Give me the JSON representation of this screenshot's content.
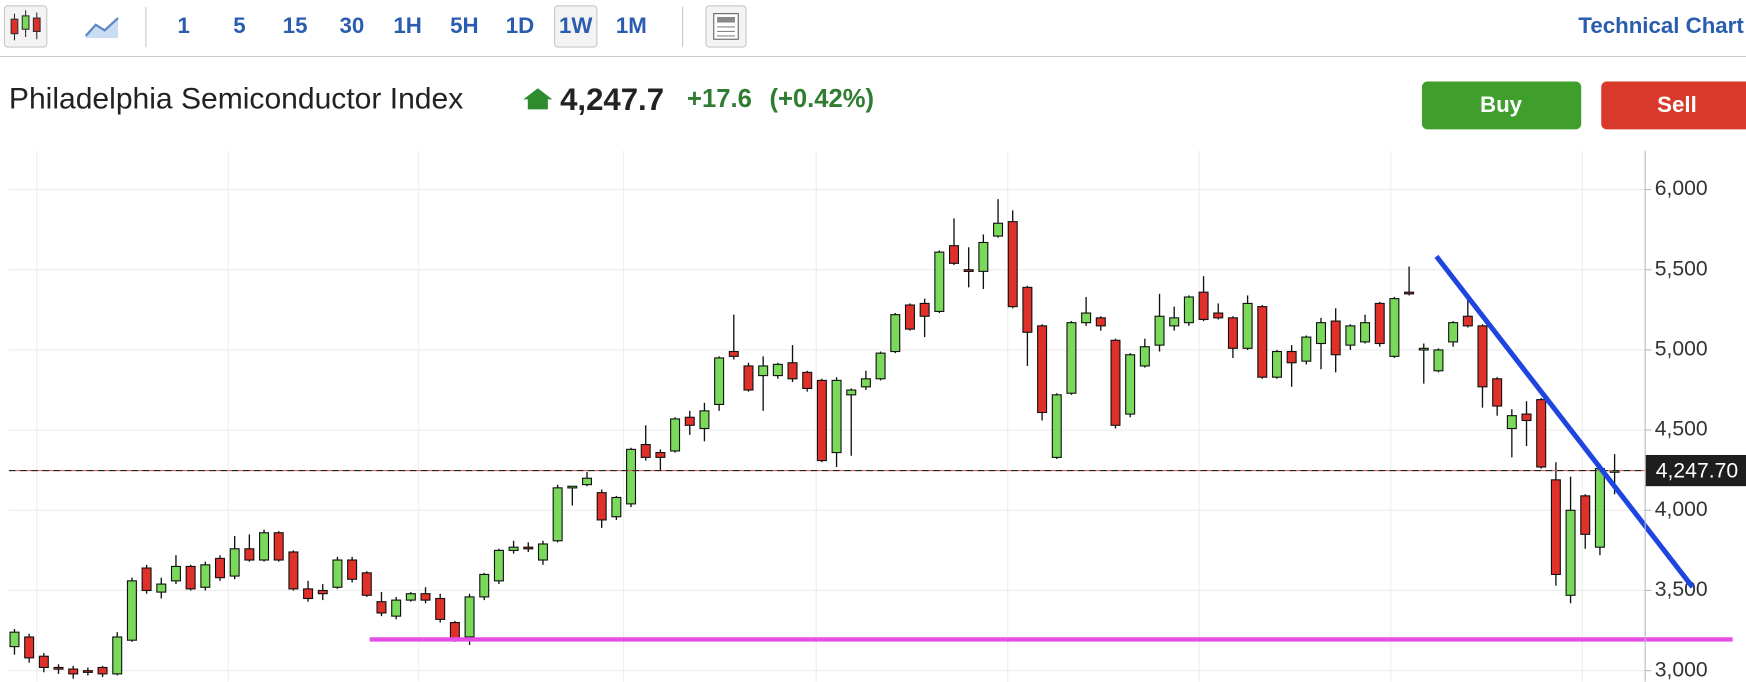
{
  "toolbar": {
    "intervals": [
      "1",
      "5",
      "15",
      "30",
      "1H",
      "5H",
      "1D",
      "1W",
      "1M"
    ],
    "link": "Technical Chart"
  },
  "quote": {
    "name": "Philadelphia Semiconductor Index",
    "price": "4,247.7",
    "change": "+17.6",
    "change_pct": "(+0.42%)"
  },
  "buttons": {
    "buy": "Buy",
    "sell": "Sell"
  },
  "chart_data": {
    "type": "candlestick",
    "up_color": "#7ad95a",
    "down_color": "#e0302a",
    "open": [
      3150,
      3210,
      3090,
      3020,
      3010,
      3000,
      3020,
      2980,
      3190,
      3640,
      3490,
      3560,
      3650,
      3520,
      3700,
      3590,
      3760,
      3690,
      3860,
      3740,
      3510,
      3500,
      3520,
      3690,
      3610,
      3430,
      3340,
      3440,
      3480,
      3450,
      3300,
      3210,
      3460,
      3560,
      3750,
      3770,
      3690,
      3810,
      4140,
      4160,
      4110,
      3960,
      4040,
      4410,
      4360,
      4370,
      4580,
      4510,
      4660,
      4990,
      4900,
      4840,
      4840,
      4920,
      4860,
      4810,
      4360,
      4720,
      4770,
      4820,
      4990,
      5280,
      5290,
      5240,
      5650,
      5500,
      5490,
      5710,
      5800,
      5390,
      5150,
      4330,
      4730,
      5170,
      5200,
      5060,
      4600,
      4900,
      5030,
      5150,
      5170,
      5360,
      5230,
      5200,
      5010,
      5270,
      4830,
      4990,
      4930,
      5040,
      5180,
      5030,
      5050,
      5290,
      4960,
      5360,
      5010,
      4870,
      5050,
      5210,
      5150,
      4820,
      4510,
      4600,
      4690,
      4190,
      3470,
      4090,
      3770,
      4240
    ],
    "high": [
      3260,
      3230,
      3110,
      3040,
      3030,
      3020,
      3030,
      3240,
      3580,
      3660,
      3580,
      3720,
      3660,
      3680,
      3720,
      3840,
      3850,
      3880,
      3870,
      3750,
      3560,
      3540,
      3710,
      3710,
      3620,
      3490,
      3460,
      3490,
      3520,
      3480,
      3310,
      3480,
      3610,
      3760,
      3810,
      3800,
      3810,
      4160,
      4150,
      4240,
      4130,
      4090,
      4390,
      4530,
      4380,
      4580,
      4620,
      4670,
      4960,
      5220,
      4920,
      4960,
      4920,
      5030,
      4870,
      4820,
      4830,
      4760,
      4870,
      4990,
      5230,
      5290,
      5320,
      5620,
      5820,
      5640,
      5720,
      5940,
      5870,
      5400,
      5160,
      4730,
      5180,
      5330,
      5210,
      5070,
      4980,
      5070,
      5350,
      5270,
      5340,
      5460,
      5290,
      5210,
      5340,
      5280,
      5000,
      5030,
      5090,
      5200,
      5260,
      5160,
      5220,
      5300,
      5330,
      5520,
      5040,
      5010,
      5180,
      5340,
      5160,
      4830,
      4630,
      4680,
      4700,
      4300,
      4210,
      4100,
      4290,
      4350
    ],
    "low": [
      3100,
      3050,
      2990,
      2980,
      2950,
      2970,
      2960,
      2970,
      3180,
      3480,
      3450,
      3540,
      3500,
      3500,
      3560,
      3570,
      3680,
      3680,
      3680,
      3500,
      3430,
      3440,
      3510,
      3550,
      3460,
      3340,
      3320,
      3430,
      3420,
      3300,
      3180,
      3160,
      3440,
      3540,
      3730,
      3740,
      3660,
      3800,
      4030,
      4150,
      3890,
      3940,
      4020,
      4310,
      4250,
      4360,
      4470,
      4430,
      4620,
      4940,
      4740,
      4620,
      4820,
      4800,
      4740,
      4300,
      4270,
      4340,
      4750,
      4810,
      4980,
      5120,
      5080,
      5230,
      5530,
      5390,
      5380,
      5700,
      5260,
      4900,
      4560,
      4320,
      4720,
      5150,
      5120,
      4510,
      4580,
      4890,
      4990,
      5120,
      5150,
      5180,
      5190,
      4950,
      5000,
      4820,
      4820,
      4770,
      4910,
      4880,
      4860,
      5000,
      5040,
      5020,
      4950,
      5340,
      4790,
      4860,
      5020,
      5140,
      4640,
      4590,
      4330,
      4400,
      4260,
      3530,
      3420,
      3760,
      3720,
      4100
    ],
    "close": [
      3240,
      3080,
      3020,
      3010,
      2980,
      2990,
      2980,
      3210,
      3560,
      3500,
      3540,
      3650,
      3510,
      3660,
      3580,
      3760,
      3690,
      3860,
      3690,
      3510,
      3450,
      3480,
      3690,
      3570,
      3470,
      3360,
      3440,
      3480,
      3440,
      3320,
      3200,
      3460,
      3600,
      3750,
      3770,
      3760,
      3790,
      4140,
      4150,
      4200,
      3940,
      4080,
      4380,
      4330,
      4330,
      4570,
      4530,
      4620,
      4950,
      4960,
      4750,
      4900,
      4910,
      4820,
      4760,
      4310,
      4810,
      4750,
      4820,
      4980,
      5220,
      5130,
      5210,
      5610,
      5540,
      5490,
      5670,
      5790,
      5270,
      5110,
      4610,
      4720,
      5170,
      5230,
      5150,
      4530,
      4970,
      5020,
      5210,
      5200,
      5330,
      5190,
      5200,
      5010,
      5290,
      4830,
      4990,
      4920,
      5080,
      5170,
      4970,
      5150,
      5170,
      5040,
      5320,
      5350,
      5010,
      5000,
      5170,
      5150,
      4770,
      4650,
      4590,
      4560,
      4270,
      3600,
      4000,
      3850,
      4260,
      4247.7
    ],
    "ylim": [
      2931,
      6243
    ],
    "yticks": [
      {
        "value": 3000,
        "label": "3,000"
      },
      {
        "value": 3500,
        "label": "3,500"
      },
      {
        "value": 4000,
        "label": "4,000"
      },
      {
        "value": 4500,
        "label": "4,500"
      },
      {
        "value": 5000,
        "label": "5,000"
      },
      {
        "value": 5500,
        "label": "5,500"
      },
      {
        "value": 6000,
        "label": "6,000"
      }
    ],
    "grid": true,
    "last_price": {
      "value": 4247.7,
      "label": "4,247.70"
    }
  }
}
